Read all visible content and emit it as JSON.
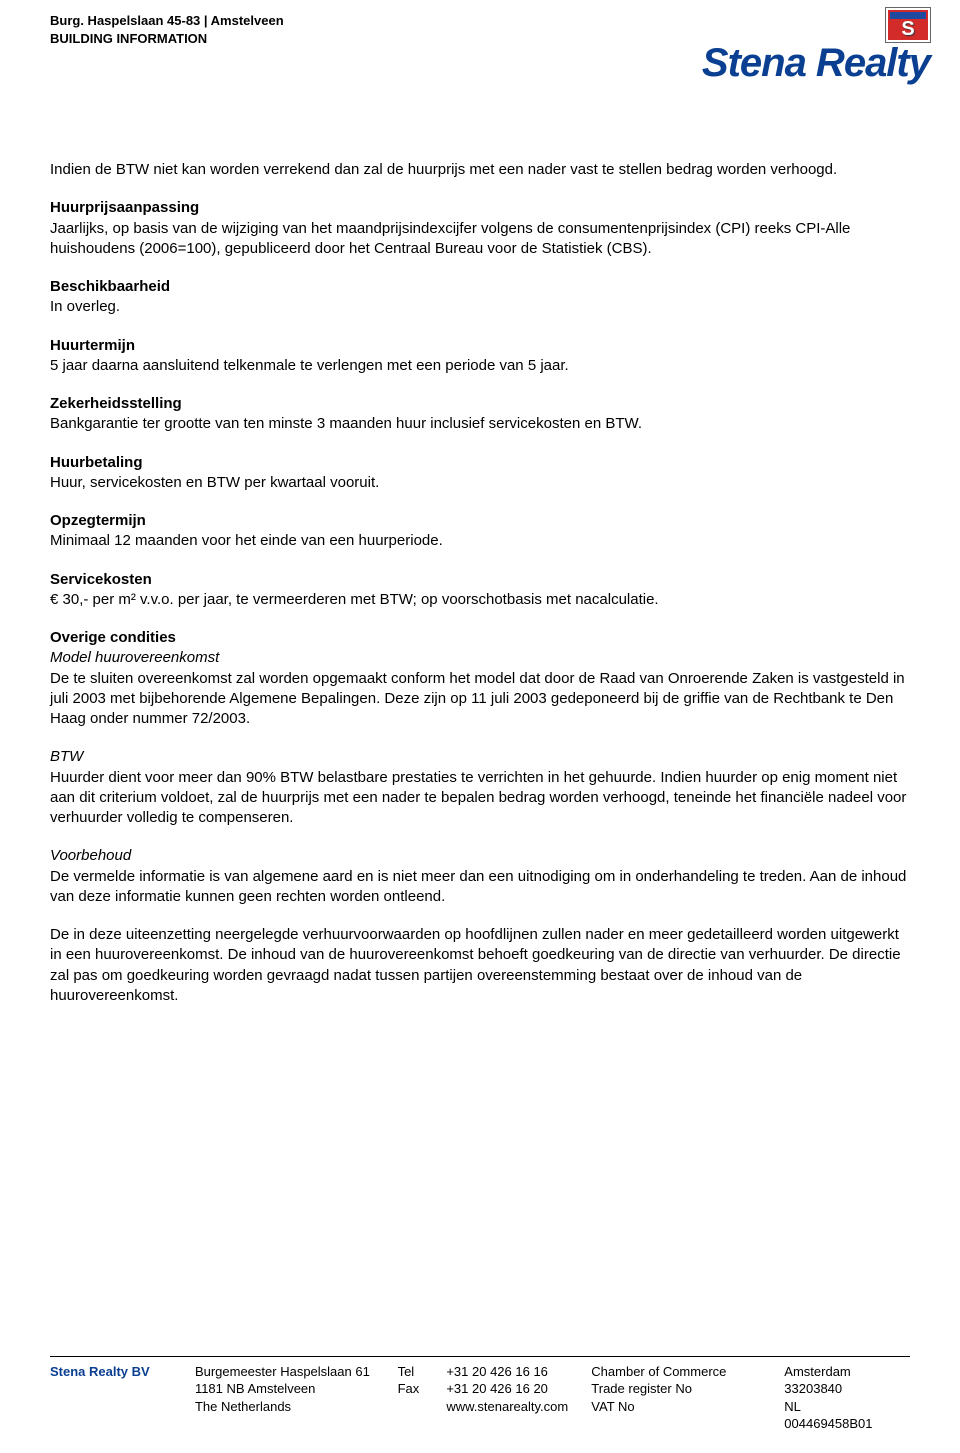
{
  "header": {
    "property_line": "Burg. Haspelslaan 45-83 | Amstelveen",
    "subtitle": "BUILDING INFORMATION"
  },
  "logo": {
    "brand": "Stena Realty",
    "brand_color": "#0b3f91",
    "flag_bg": "#d32a2a",
    "flag_band": "#1f4aa0",
    "flag_letter_color": "#ffffff"
  },
  "body": {
    "intro": "Indien de BTW niet kan worden verrekend dan zal de huurprijs met een nader vast te stellen bedrag worden verhoogd.",
    "sections": [
      {
        "heading": "Huurprijsaanpassing",
        "text": "Jaarlijks, op basis van de wijziging van het maandprijsindexcijfer volgens de consumentenprijsindex (CPI) reeks CPI-Alle huishoudens (2006=100), gepubliceerd door het Centraal Bureau voor de Statistiek (CBS)."
      },
      {
        "heading": "Beschikbaarheid",
        "text": "In overleg."
      },
      {
        "heading": "Huurtermijn",
        "text": "5 jaar daarna aansluitend telkenmale te verlengen met een periode van 5 jaar."
      },
      {
        "heading": "Zekerheidsstelling",
        "text": "Bankgarantie ter grootte van ten minste 3 maanden huur inclusief servicekosten en BTW."
      },
      {
        "heading": "Huurbetaling",
        "text": "Huur, servicekosten en BTW per kwartaal vooruit."
      },
      {
        "heading": "Opzegtermijn",
        "text": "Minimaal 12 maanden voor het einde van een huurperiode."
      },
      {
        "heading": "Servicekosten",
        "text": "€ 30,- per m² v.v.o. per jaar, te vermeerderen met BTW; op voorschotbasis met nacalculatie."
      }
    ],
    "overige_heading": "Overige condities",
    "overige": [
      {
        "sub": "Model huurovereenkomst",
        "text": "De te sluiten overeenkomst zal worden opgemaakt conform het model dat door de Raad van Onroerende Zaken is vastgesteld in juli 2003 met bijbehorende Algemene Bepalingen. Deze zijn op 11 juli 2003 gedeponeerd bij de griffie van de Rechtbank te Den Haag onder nummer 72/2003."
      },
      {
        "sub": "BTW",
        "text": "Huurder dient voor meer dan 90% BTW belastbare prestaties te verrichten in het gehuurde. Indien huurder op enig moment niet aan dit criterium voldoet, zal de huurprijs met een nader te bepalen bedrag worden verhoogd, teneinde het financiële nadeel voor verhuurder volledig te compenseren."
      },
      {
        "sub": "Voorbehoud",
        "text": "De vermelde informatie is van algemene aard en is niet meer dan een uitnodiging om in onderhandeling te treden. Aan de inhoud van deze informatie kunnen geen rechten worden ontleend."
      }
    ],
    "closing": "De in deze uiteenzetting neergelegde verhuurvoorwaarden op hoofdlijnen zullen nader en meer gedetailleerd worden uitgewerkt in een huurovereenkomst. De inhoud van de huurovereenkomst behoeft goedkeuring van de directie van verhuurder. De directie zal pas om goedkeuring worden gevraagd nadat tussen partijen overeenstemming bestaat over de inhoud van de huurovereenkomst."
  },
  "footer": {
    "company": "Stena Realty BV",
    "address": {
      "line1": "Burgemeester Haspelslaan 61",
      "line2": "1181 NB Amstelveen",
      "line3": "The Netherlands"
    },
    "contact_labels": {
      "tel": "Tel",
      "fax": "Fax",
      "web": ""
    },
    "contact_values": {
      "tel": "+31 20 426 16 16",
      "fax": "+31 20 426 16 20",
      "web": "www.stenarealty.com"
    },
    "legal_labels": {
      "coc": "Chamber of Commerce",
      "trade": "Trade register No",
      "vat": "VAT No"
    },
    "legal_values": {
      "coc": "Amsterdam",
      "trade": "33203840",
      "vat": "NL 004469458B01"
    }
  }
}
